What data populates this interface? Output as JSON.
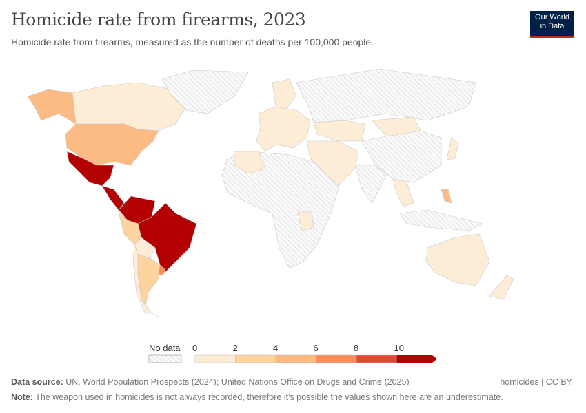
{
  "header": {
    "title": "Homicide rate from firearms, 2023",
    "subtitle": "Homicide rate from firearms, measured as the number of deaths per 100,000 people.",
    "logo_line1": "Our World",
    "logo_line2": "in Data"
  },
  "legend": {
    "no_data_label": "No data",
    "ticks": [
      "0",
      "2",
      "4",
      "6",
      "8",
      "10"
    ],
    "bins": [
      {
        "range": "0-2",
        "color": "#feedd6"
      },
      {
        "range": "2-4",
        "color": "#fdd49e"
      },
      {
        "range": "4-6",
        "color": "#fdbb84"
      },
      {
        "range": "6-8",
        "color": "#fc8d59"
      },
      {
        "range": "8-10",
        "color": "#e34a33"
      },
      {
        "range": ">10",
        "color": "#b30000"
      }
    ],
    "no_data_color": "#e6e6e6"
  },
  "map_data": {
    "regions": [
      {
        "name": "Canada",
        "bin": "0-2"
      },
      {
        "name": "Alaska",
        "bin": "4-6"
      },
      {
        "name": "United States",
        "bin": "4-6"
      },
      {
        "name": "Greenland",
        "bin": "no data"
      },
      {
        "name": "Mexico",
        "bin": ">10"
      },
      {
        "name": "Central America",
        "bin": ">10"
      },
      {
        "name": "Colombia-Venezuela",
        "bin": ">10"
      },
      {
        "name": "Brazil",
        "bin": ">10"
      },
      {
        "name": "Peru",
        "bin": "2-4"
      },
      {
        "name": "Bolivia",
        "bin": "0-2"
      },
      {
        "name": "Argentina",
        "bin": "2-4"
      },
      {
        "name": "Chile",
        "bin": "0-2"
      },
      {
        "name": "Uruguay",
        "bin": "6-8"
      },
      {
        "name": "Europe",
        "bin": "0-2"
      },
      {
        "name": "Scandinavia",
        "bin": "0-2"
      },
      {
        "name": "Russia",
        "bin": "no data"
      },
      {
        "name": "Africa",
        "bin": "no data"
      },
      {
        "name": "Algeria",
        "bin": "0-2"
      },
      {
        "name": "Tanzania",
        "bin": "0-2"
      },
      {
        "name": "Kazakhstan",
        "bin": "0-2"
      },
      {
        "name": "Mongolia",
        "bin": "0-2"
      },
      {
        "name": "China",
        "bin": "no data"
      },
      {
        "name": "India",
        "bin": "no data"
      },
      {
        "name": "Middle East",
        "bin": "0-2"
      },
      {
        "name": "Japan",
        "bin": "0-2"
      },
      {
        "name": "Southeast Asia",
        "bin": "0-2"
      },
      {
        "name": "Philippines",
        "bin": "4-6"
      },
      {
        "name": "Indonesia",
        "bin": "no data"
      },
      {
        "name": "Australia",
        "bin": "0-2"
      },
      {
        "name": "New Zealand",
        "bin": "0-2"
      }
    ]
  },
  "footer": {
    "source_label": "Data source:",
    "source": "UN, World Population Prospects (2024); United Nations Office on Drugs and Crime (2025)",
    "note_label": "Note:",
    "note": "The weapon used in homicides is not always recorded, therefore it's possible the values shown here are an underestimate.",
    "license": "homicides | CC BY"
  }
}
